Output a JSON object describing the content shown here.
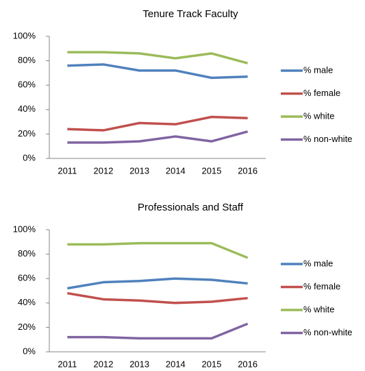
{
  "chart_data": [
    {
      "type": "line",
      "title": "Tenure Track Faculty",
      "categories": [
        "2011",
        "2012",
        "2013",
        "2014",
        "2015",
        "2016"
      ],
      "series": [
        {
          "name": "% male",
          "color": "#4f81bd",
          "values": [
            76,
            77,
            72,
            72,
            66,
            67
          ]
        },
        {
          "name": "% female",
          "color": "#c0504d",
          "values": [
            24,
            23,
            29,
            28,
            34,
            33
          ]
        },
        {
          "name": "% white",
          "color": "#9bbb59",
          "values": [
            87,
            87,
            86,
            82,
            86,
            78
          ]
        },
        {
          "name": "% non-white",
          "color": "#8064a2",
          "values": [
            13,
            13,
            14,
            18,
            14,
            22
          ]
        }
      ],
      "ylim": [
        0,
        100
      ],
      "yticks": [
        {
          "value": 0,
          "label": "0%"
        },
        {
          "value": 20,
          "label": "20%"
        },
        {
          "value": 40,
          "label": "40%"
        },
        {
          "value": 60,
          "label": "60%"
        },
        {
          "value": 80,
          "label": "80%"
        },
        {
          "value": 100,
          "label": "100%"
        }
      ],
      "grid": false,
      "legend": "right"
    },
    {
      "type": "line",
      "title": "Professionals and Staff",
      "categories": [
        "2011",
        "2012",
        "2013",
        "2014",
        "2015",
        "2016"
      ],
      "series": [
        {
          "name": "% male",
          "color": "#4f81bd",
          "values": [
            52,
            57,
            58,
            60,
            59,
            56
          ]
        },
        {
          "name": "% female",
          "color": "#c0504d",
          "values": [
            48,
            43,
            42,
            40,
            41,
            44
          ]
        },
        {
          "name": "% white",
          "color": "#9bbb59",
          "values": [
            88,
            88,
            89,
            89,
            89,
            77
          ]
        },
        {
          "name": "% non-white",
          "color": "#8064a2",
          "values": [
            12,
            12,
            11,
            11,
            11,
            23
          ]
        }
      ],
      "ylim": [
        0,
        100
      ],
      "yticks": [
        {
          "value": 0,
          "label": "0%"
        },
        {
          "value": 20,
          "label": "20%"
        },
        {
          "value": 40,
          "label": "40%"
        },
        {
          "value": 60,
          "label": "60%"
        },
        {
          "value": 80,
          "label": "80%"
        },
        {
          "value": 100,
          "label": "100%"
        }
      ],
      "grid": false,
      "legend": "right"
    }
  ]
}
